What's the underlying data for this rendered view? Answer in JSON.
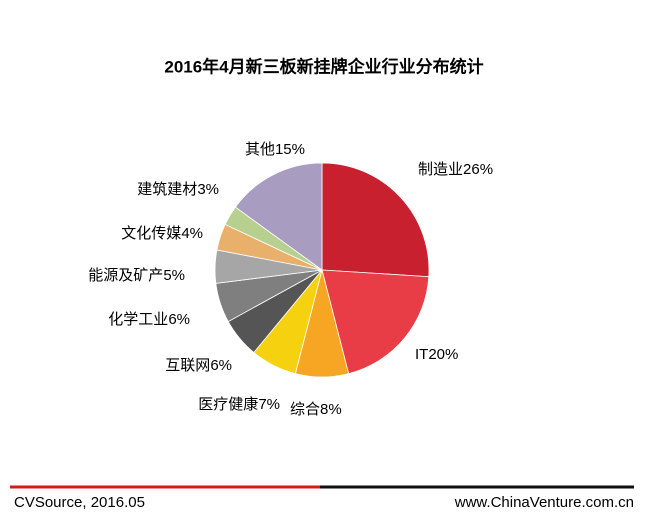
{
  "chart_data": {
    "type": "pie",
    "title": "2016年4月新三板新挂牌企业行业分布统计",
    "categories": [
      "制造业",
      "IT",
      "综合",
      "医疗健康",
      "互联网",
      "化学工业",
      "能源及矿产",
      "文化传媒",
      "建筑建材",
      "其他"
    ],
    "values": [
      26,
      20,
      8,
      7,
      6,
      6,
      5,
      4,
      3,
      15
    ],
    "value_labels": [
      "26%",
      "20%",
      "8%",
      "7%",
      "6%",
      "6%",
      "5%",
      "4%",
      "3%",
      "15%"
    ],
    "colors": [
      "#c8202f",
      "#e83c47",
      "#f6a623",
      "#f5d10f",
      "#555555",
      "#7f7f7f",
      "#a6a6a6",
      "#e8b06a",
      "#b7d08f",
      "#a89cc0"
    ]
  },
  "footer": {
    "source": "CVSource, 2016.05",
    "website": "www.ChinaVenture.com.cn"
  }
}
